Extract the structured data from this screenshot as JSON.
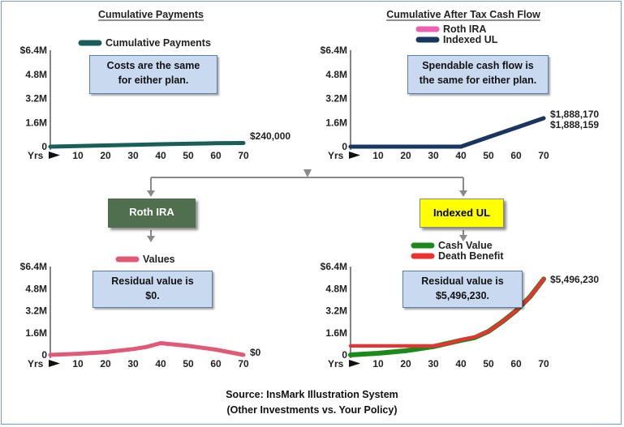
{
  "chart_data": [
    {
      "type": "line",
      "title": "Cumulative Payments",
      "x_unit_label": "Yrs",
      "x_ticks": [
        10,
        20,
        30,
        40,
        50,
        60,
        70
      ],
      "y_ticks": [
        "0",
        "1.6M",
        "3.2M",
        "4.8M",
        "$6.4M"
      ],
      "ylim": [
        0,
        6400000
      ],
      "xlim": [
        0,
        70
      ],
      "series": [
        {
          "name": "Cumulative Payments",
          "color": "#1a5e5a",
          "x": [
            0,
            10,
            20,
            30,
            40,
            50,
            60,
            70
          ],
          "y": [
            0,
            40000,
            80000,
            120000,
            160000,
            195000,
            225000,
            240000
          ]
        }
      ],
      "end_labels": [
        "$240,000"
      ],
      "note": [
        "Costs are the same",
        "for either plan."
      ],
      "legend": "top"
    },
    {
      "type": "line",
      "title": "Cumulative After Tax Cash Flow",
      "x_unit_label": "Yrs",
      "x_ticks": [
        10,
        20,
        30,
        40,
        50,
        60,
        70
      ],
      "y_ticks": [
        "0",
        "1.6M",
        "3.2M",
        "4.8M",
        "$6.4M"
      ],
      "ylim": [
        0,
        6400000
      ],
      "xlim": [
        0,
        70
      ],
      "series": [
        {
          "name": "Roth IRA",
          "color": "#f060b0",
          "x": [
            0,
            10,
            20,
            30,
            40,
            50,
            60,
            70
          ],
          "y": [
            0,
            0,
            0,
            0,
            0,
            630000,
            1260000,
            1888170
          ]
        },
        {
          "name": "Indexed UL",
          "color": "#17375e",
          "x": [
            0,
            10,
            20,
            30,
            40,
            50,
            60,
            70
          ],
          "y": [
            0,
            0,
            0,
            0,
            0,
            630000,
            1260000,
            1888159
          ]
        }
      ],
      "end_labels": [
        "$1,888,170",
        "$1,888,159"
      ],
      "note": [
        "Spendable cash flow is",
        "the same for either plan."
      ],
      "legend": "top"
    },
    {
      "type": "line",
      "title": "",
      "x_unit_label": "Yrs",
      "x_ticks": [
        10,
        20,
        30,
        40,
        50,
        60,
        70
      ],
      "y_ticks": [
        "0",
        "1.6M",
        "3.2M",
        "4.8M",
        "$6.4M"
      ],
      "ylim": [
        0,
        6400000
      ],
      "xlim": [
        0,
        70
      ],
      "series": [
        {
          "name": "Values",
          "color": "#e05a78",
          "x": [
            0,
            10,
            20,
            30,
            35,
            40,
            50,
            60,
            70
          ],
          "y": [
            0,
            80000,
            200000,
            420000,
            580000,
            850000,
            650000,
            380000,
            0
          ]
        }
      ],
      "end_labels": [
        "$0"
      ],
      "note": [
        "Residual value is",
        "$0."
      ],
      "legend": "top"
    },
    {
      "type": "line",
      "title": "",
      "x_unit_label": "Yrs",
      "x_ticks": [
        10,
        20,
        30,
        40,
        50,
        60,
        70
      ],
      "y_ticks": [
        "0",
        "1.6M",
        "3.2M",
        "4.8M",
        "$6.4M"
      ],
      "ylim": [
        0,
        6400000
      ],
      "xlim": [
        0,
        70
      ],
      "series": [
        {
          "name": "Cash Value",
          "color": "#1a8a1a",
          "x": [
            0,
            10,
            20,
            30,
            40,
            45,
            50,
            55,
            60,
            65,
            70
          ],
          "y": [
            0,
            120000,
            300000,
            600000,
            1050000,
            1250000,
            1700000,
            2400000,
            3200000,
            4200000,
            5496230
          ]
        },
        {
          "name": "Death Benefit",
          "color": "#ee3030",
          "x": [
            0,
            10,
            20,
            30,
            35,
            40,
            45,
            50,
            55,
            60,
            65,
            70
          ],
          "y": [
            650000,
            650000,
            650000,
            650000,
            800000,
            1100000,
            1300000,
            1700000,
            2400000,
            3200000,
            4200000,
            5496230
          ]
        }
      ],
      "end_labels": [
        "$5,496,230"
      ],
      "note": [
        "Residual value is",
        "$5,496,230."
      ],
      "legend": "top"
    }
  ],
  "plans": {
    "left": {
      "label": "Roth IRA",
      "bg": "#4f6f4f",
      "text_color": "#ffffff"
    },
    "right": {
      "label": "Indexed UL",
      "bg": "#ffff00",
      "text_color": "#000000"
    }
  },
  "source": {
    "line1": "Source: InsMark Illustration System",
    "line2": "(Other Investments vs. Your Policy)"
  },
  "colors": {
    "frame_border": "#7a9cc6",
    "note_bg": "#c9daf0",
    "connector": "#8a8a8a"
  }
}
